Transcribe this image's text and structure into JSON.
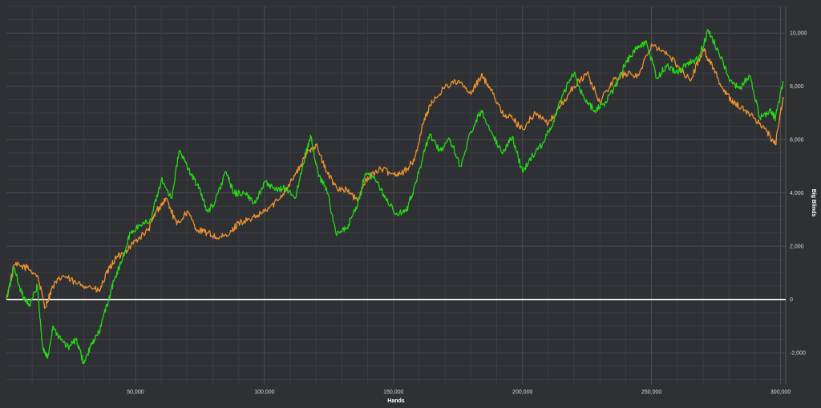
{
  "chart_data": {
    "type": "line",
    "title": "",
    "xlabel": "Hands",
    "ylabel": "Big Blinds",
    "xlim": [
      0,
      302000
    ],
    "ylim": [
      -3200,
      11000
    ],
    "x_ticks": [
      {
        "value": 50000,
        "label": "50,000"
      },
      {
        "value": 100000,
        "label": "100,000"
      },
      {
        "value": 150000,
        "label": "150,000"
      },
      {
        "value": 200000,
        "label": "200,000"
      },
      {
        "value": 250000,
        "label": "250,000"
      },
      {
        "value": 300000,
        "label": "300,000"
      }
    ],
    "y_ticks": [
      {
        "value": -2000,
        "label": "-2,000"
      },
      {
        "value": 0,
        "label": "0"
      },
      {
        "value": 2000,
        "label": "2,000"
      },
      {
        "value": 4000,
        "label": "4,000"
      },
      {
        "value": 6000,
        "label": "6,000"
      },
      {
        "value": 8000,
        "label": "8,000"
      },
      {
        "value": 10000,
        "label": "10,000"
      }
    ],
    "grid": true,
    "zero_line": true,
    "series": [
      {
        "color": "#f0922e",
        "x": [
          0,
          3000,
          8000,
          12000,
          15000,
          18000,
          22000,
          27000,
          32000,
          36000,
          39000,
          42000,
          46000,
          50000,
          55000,
          58000,
          62000,
          66000,
          70000,
          74000,
          78000,
          82000,
          86000,
          90000,
          95000,
          100000,
          105000,
          110000,
          114000,
          117000,
          120000,
          124000,
          128000,
          132000,
          136000,
          140000,
          145000,
          150000,
          154000,
          158000,
          162000,
          165000,
          170000,
          175000,
          180000,
          184000,
          188000,
          192000,
          196000,
          200000,
          205000,
          210000,
          215000,
          220000,
          225000,
          230000,
          235000,
          240000,
          245000,
          250000,
          255000,
          260000,
          265000,
          270000,
          274000,
          278000,
          282000,
          286000,
          290000,
          294000,
          298000,
          301000
        ],
        "values": [
          0,
          1300,
          1200,
          900,
          -300,
          500,
          900,
          600,
          500,
          300,
          1000,
          1500,
          1800,
          2200,
          2600,
          3300,
          3800,
          2800,
          3300,
          2600,
          2500,
          2300,
          2400,
          2900,
          3000,
          3300,
          3700,
          4400,
          5000,
          5600,
          5800,
          4800,
          4200,
          4100,
          3700,
          4600,
          4900,
          4700,
          4800,
          5200,
          6800,
          7400,
          8000,
          8200,
          7700,
          8400,
          7900,
          7000,
          6800,
          6400,
          7000,
          6600,
          7300,
          8000,
          8500,
          7400,
          8200,
          8500,
          8400,
          9600,
          9300,
          8800,
          8200,
          9400,
          8700,
          7800,
          7400,
          7100,
          6800,
          6400,
          5800,
          7600
        ]
      },
      {
        "color": "#27d816",
        "x": [
          0,
          3000,
          6000,
          9000,
          12000,
          14000,
          16000,
          18000,
          21000,
          24000,
          27000,
          30000,
          33000,
          36000,
          39000,
          42000,
          45000,
          48000,
          52000,
          56000,
          60000,
          64000,
          67000,
          70000,
          74000,
          78000,
          81000,
          85000,
          88000,
          92000,
          96000,
          100000,
          104000,
          108000,
          112000,
          116000,
          118000,
          121000,
          124000,
          128000,
          132000,
          136000,
          139000,
          143000,
          147000,
          151000,
          155000,
          158000,
          161000,
          164000,
          168000,
          172000,
          176000,
          180000,
          184000,
          188000,
          192000,
          196000,
          200000,
          204000,
          208000,
          212000,
          216000,
          220000,
          224000,
          228000,
          232000,
          236000,
          240000,
          244000,
          248000,
          252000,
          256000,
          260000,
          264000,
          268000,
          272000,
          276000,
          280000,
          284000,
          288000,
          292000,
          296000,
          298000,
          301000
        ],
        "values": [
          0,
          1200,
          200,
          -200,
          500,
          -1800,
          -2200,
          -1000,
          -1500,
          -1800,
          -1500,
          -2400,
          -1700,
          -1200,
          -200,
          800,
          1500,
          2500,
          2800,
          3000,
          4500,
          3800,
          5600,
          5000,
          4300,
          3300,
          3700,
          4800,
          4000,
          4000,
          3600,
          4400,
          4100,
          4200,
          3800,
          5500,
          6100,
          4600,
          4200,
          2400,
          2700,
          3500,
          4700,
          4500,
          3800,
          3200,
          3300,
          4200,
          5200,
          6200,
          5600,
          6000,
          5000,
          6300,
          7100,
          6300,
          5500,
          6100,
          4800,
          5400,
          5900,
          6700,
          7800,
          8500,
          7500,
          7100,
          7400,
          8000,
          8900,
          9400,
          9700,
          8300,
          8800,
          8500,
          8900,
          9000,
          10100,
          9300,
          8300,
          7900,
          8400,
          6800,
          7100,
          6800,
          8200
        ]
      }
    ]
  }
}
